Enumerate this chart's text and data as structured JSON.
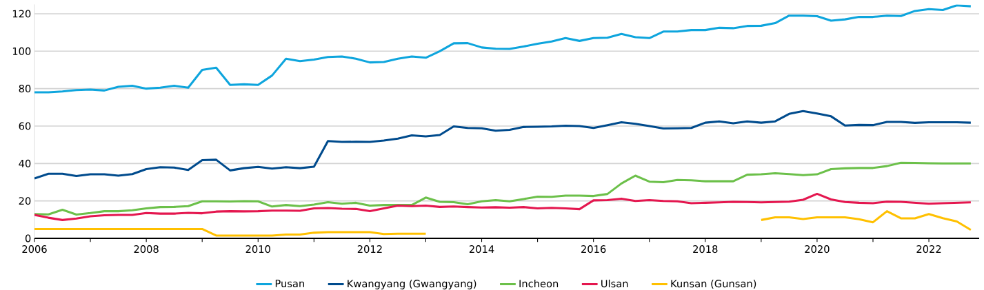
{
  "chart_data": {
    "type": "line",
    "x": [
      2006,
      2006.25,
      2006.5,
      2006.75,
      2007,
      2007.25,
      2007.5,
      2007.75,
      2008,
      2008.25,
      2008.5,
      2008.75,
      2009,
      2009.25,
      2009.5,
      2009.75,
      2010,
      2010.25,
      2010.5,
      2010.75,
      2011,
      2011.25,
      2011.5,
      2011.75,
      2012,
      2012.25,
      2012.5,
      2012.75,
      2013,
      2013.25,
      2013.5,
      2013.75,
      2014,
      2014.25,
      2014.5,
      2014.75,
      2015,
      2015.25,
      2015.5,
      2015.75,
      2016,
      2016.25,
      2016.5,
      2016.75,
      2017,
      2017.25,
      2017.5,
      2017.75,
      2018,
      2018.25,
      2018.5,
      2018.75,
      2019,
      2019.25,
      2019.5,
      2019.75,
      2020,
      2020.25,
      2020.5,
      2020.75,
      2021,
      2021.25,
      2021.5,
      2021.75,
      2022,
      2022.25,
      2022.5,
      2022.75
    ],
    "series": [
      {
        "name": "Pusan",
        "color": "#0ea5dd",
        "values": [
          78,
          78,
          78.5,
          79.2,
          79.5,
          79,
          81,
          81.5,
          80,
          80.5,
          81.5,
          80.5,
          90,
          91.2,
          82,
          82.3,
          82,
          87,
          96,
          94.7,
          95.5,
          96.9,
          97.2,
          96,
          94,
          94.2,
          96,
          97.2,
          96.5,
          100,
          104.2,
          104.3,
          102,
          101.3,
          101.2,
          102.5,
          104,
          105.2,
          107,
          105.5,
          107,
          107.2,
          109.2,
          107.5,
          107,
          110.5,
          110.5,
          111.3,
          111.3,
          112.5,
          112.3,
          113.5,
          113.6,
          115,
          119,
          119,
          118.7,
          116.3,
          117,
          118.3,
          118.3,
          119,
          118.8,
          121.5,
          122.5,
          122,
          124.5,
          124
        ]
      },
      {
        "name": "Kwangyang (Gwangyang)",
        "color": "#004b8d",
        "values": [
          32,
          34.5,
          34.5,
          33.3,
          34.2,
          34.2,
          33.5,
          34.3,
          37,
          38,
          37.8,
          36.5,
          41.8,
          42,
          36.3,
          37.5,
          38.2,
          37.3,
          38,
          37.5,
          38.3,
          52,
          51.5,
          51.6,
          51.5,
          52.3,
          53.3,
          55,
          54.5,
          55.2,
          59.8,
          59,
          58.8,
          57.5,
          58,
          59.5,
          59.6,
          59.8,
          60.2,
          60,
          59,
          60.5,
          62,
          61.2,
          60,
          58.7,
          58.8,
          59,
          61.8,
          62.5,
          61.5,
          62.5,
          61.8,
          62.5,
          66.5,
          68,
          66.7,
          65.2,
          60.3,
          60.6,
          60.5,
          62.2,
          62.2,
          61.7,
          62,
          62,
          62,
          61.8
        ]
      },
      {
        "name": "Incheon",
        "color": "#6cc04a",
        "values": [
          13,
          12.8,
          15.3,
          12.7,
          13.5,
          14.5,
          14.5,
          15,
          16,
          16.7,
          16.8,
          17.2,
          19.8,
          19.8,
          19.7,
          19.9,
          19.8,
          17,
          17.8,
          17.2,
          18,
          19.3,
          18.5,
          19,
          17.5,
          17.8,
          17.8,
          17.8,
          21.8,
          19.5,
          19.3,
          18.2,
          19.8,
          20.4,
          19.8,
          21,
          22.3,
          22.2,
          22.8,
          22.8,
          22.6,
          23.7,
          29.3,
          33.5,
          30.3,
          30,
          31.2,
          31,
          30.5,
          30.5,
          30.5,
          34,
          34.2,
          34.8,
          34.3,
          33.8,
          34.2,
          37,
          37.4,
          37.6,
          37.6,
          38.6,
          40.4,
          40.3,
          40.1,
          40,
          40,
          40
        ]
      },
      {
        "name": "Ulsan",
        "color": "#e4174f",
        "values": [
          12.5,
          11,
          9.8,
          10.6,
          11.8,
          12.3,
          12.5,
          12.5,
          13.5,
          13.2,
          13.2,
          13.6,
          13.4,
          14.3,
          14.5,
          14.4,
          14.5,
          14.8,
          14.8,
          14.7,
          16,
          16.2,
          15.8,
          15.7,
          14.5,
          16,
          17.5,
          17.2,
          17.5,
          16.8,
          17,
          16.7,
          16.5,
          16.6,
          16.4,
          16.7,
          16,
          16.3,
          16,
          15.6,
          20.3,
          20.4,
          21.2,
          20,
          20.4,
          20,
          19.8,
          18.8,
          19,
          19.2,
          19.5,
          19.4,
          19.2,
          19.4,
          19.6,
          20.6,
          23.8,
          20.8,
          19.4,
          19,
          18.8,
          19.6,
          19.5,
          19,
          18.5,
          18.8,
          19,
          19.2
        ]
      },
      {
        "name": "Kunsan (Gunsan)",
        "color": "#ffc000",
        "values": [
          5,
          5,
          5,
          5,
          5,
          5,
          5,
          5,
          5,
          5,
          5,
          5,
          5,
          1.5,
          1.5,
          1.5,
          1.5,
          1.5,
          2,
          2,
          3,
          3.3,
          3.3,
          3.3,
          3.3,
          2.3,
          2.5,
          2.5,
          2.5,
          null,
          null,
          null,
          null,
          null,
          null,
          null,
          null,
          null,
          null,
          null,
          null,
          null,
          null,
          null,
          null,
          null,
          null,
          null,
          null,
          null,
          null,
          null,
          9.8,
          11.2,
          11.2,
          10.3,
          11.2,
          11.2,
          11.2,
          10.2,
          8.6,
          14.5,
          10.7,
          10.7,
          13,
          10.8,
          9,
          4.5
        ]
      }
    ],
    "xlim": [
      2006,
      2022.9
    ],
    "xticks": [
      2006,
      {
        "value": 2007,
        "label": null
      },
      2008,
      {
        "value": 2009,
        "label": null
      },
      2010,
      {
        "value": 2011,
        "label": null
      },
      2012,
      {
        "value": 2013,
        "label": null
      },
      2014,
      {
        "value": 2015,
        "label": null
      },
      2016,
      {
        "value": 2017,
        "label": null
      },
      2018,
      {
        "value": 2019,
        "label": null
      },
      2020,
      {
        "value": 2021,
        "label": null
      },
      2022
    ],
    "ylim": [
      0,
      125
    ],
    "yticks": [
      0,
      20,
      40,
      60,
      80,
      100,
      120
    ],
    "grid": "y",
    "legend": "bottom"
  }
}
